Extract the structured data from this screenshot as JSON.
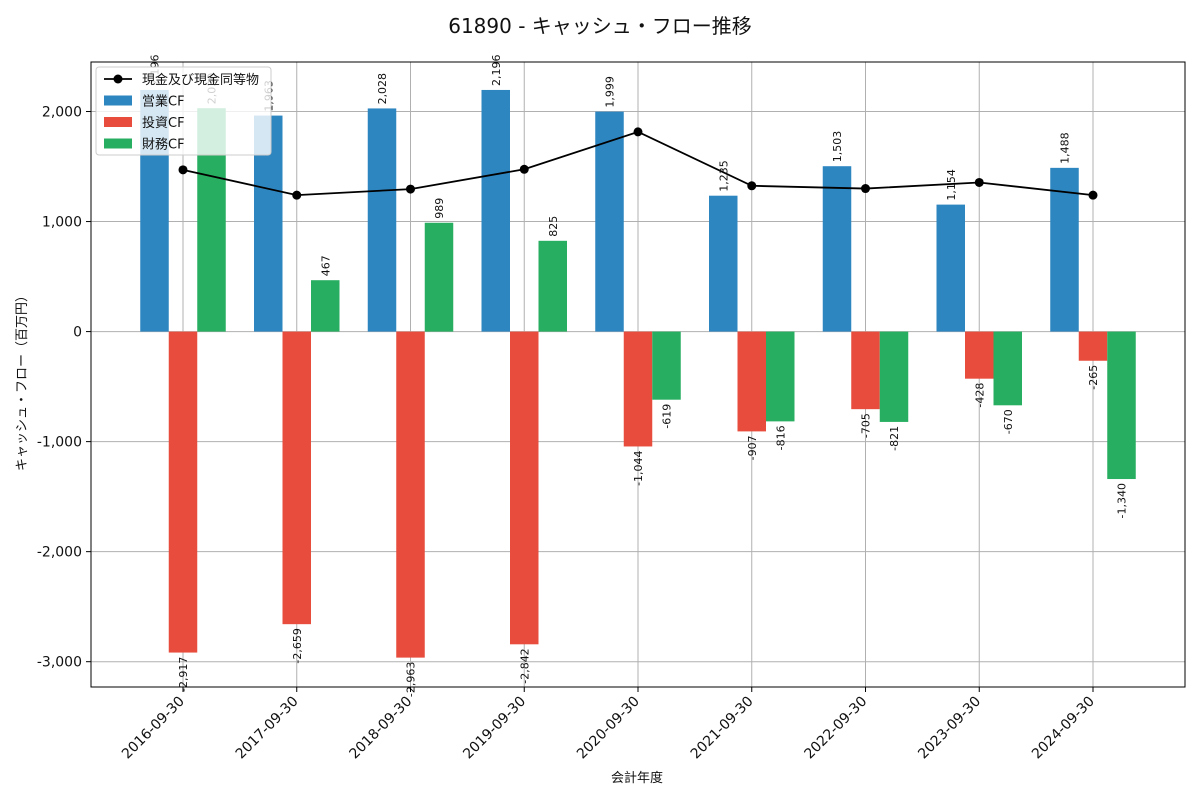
{
  "chart_data": {
    "type": "bar",
    "title": "61890 - キャッシュ・フロー推移",
    "xlabel": "会計年度",
    "ylabel": "キャッシュ・フロー（百万円）",
    "categories": [
      "2016-09-30",
      "2017-09-30",
      "2018-09-30",
      "2019-09-30",
      "2020-09-30",
      "2021-09-30",
      "2022-09-30",
      "2023-09-30",
      "2024-09-30"
    ],
    "ylim": [
      -3230,
      2450
    ],
    "yticks": [
      -3000,
      -2000,
      -1000,
      0,
      1000,
      2000
    ],
    "ytick_labels": [
      "-3,000",
      "-2,000",
      "-1,000",
      "0",
      "1,000",
      "2,000"
    ],
    "grid": true,
    "legend_position": "top-left",
    "series": [
      {
        "name": "営業CF",
        "type": "bar",
        "color": "#2e86c1",
        "values": [
          2196,
          1963,
          2028,
          2196,
          1999,
          1235,
          1503,
          1154,
          1488
        ],
        "labels": [
          "2,196",
          "1,963",
          "2,028",
          "2,196",
          "1,999",
          "1,235",
          "1,503",
          "1,154",
          "1,488"
        ]
      },
      {
        "name": "投資CF",
        "type": "bar",
        "color": "#e74c3c",
        "values": [
          -2917,
          -2659,
          -2963,
          -2842,
          -1044,
          -907,
          -705,
          -428,
          -265
        ],
        "labels": [
          "-2,917",
          "-2,659",
          "-2,963",
          "-2,842",
          "-1,044",
          "-907",
          "-705",
          "-428",
          "-265"
        ]
      },
      {
        "name": "財務CF",
        "type": "bar",
        "color": "#27ae60",
        "values": [
          2030,
          467,
          989,
          825,
          -619,
          -816,
          -821,
          -670,
          -1340
        ],
        "labels": [
          "2,030",
          "467",
          "989",
          "825",
          "-619",
          "-816",
          "-821",
          "-670",
          "-1,340"
        ]
      },
      {
        "name": "現金及び現金同等物",
        "type": "line",
        "color": "#000000",
        "values": [
          1470,
          1240,
          1295,
          1475,
          1815,
          1325,
          1300,
          1355,
          1240
        ]
      }
    ]
  }
}
